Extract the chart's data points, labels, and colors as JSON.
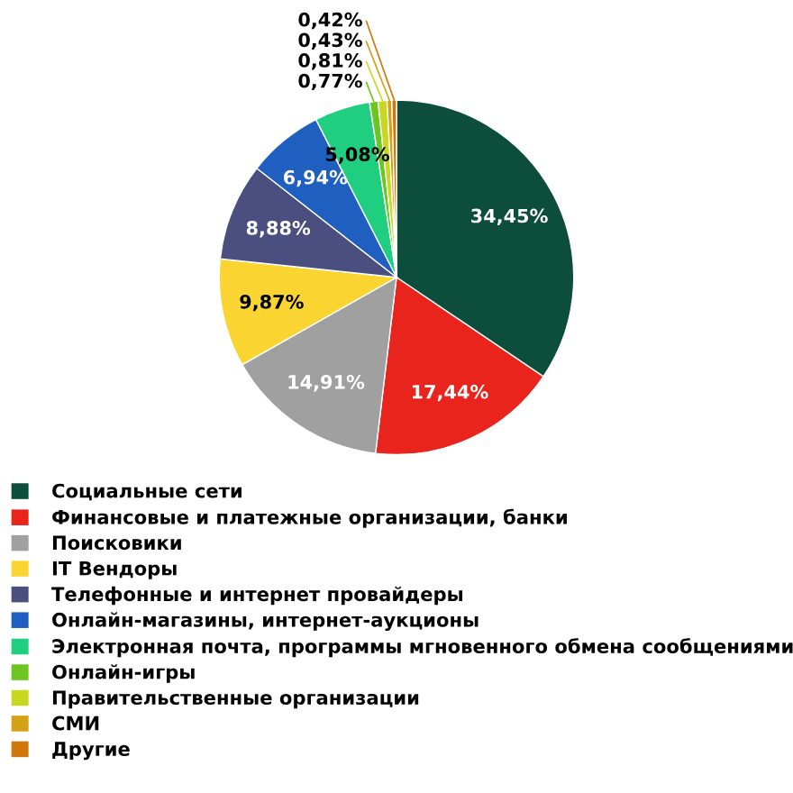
{
  "chart_data": {
    "type": "pie",
    "categories": [
      "Социальные сети",
      "Финансовые и платежные организации, банки",
      "Поисковики",
      "IT Вендоры",
      "Телефонные и интернет провайдеры",
      "Онлайн-магазины, интернет-аукционы",
      "Электронная почта, программы мгновенного обмена сообщениями",
      "Онлайн-игры",
      "Правительственные организации",
      "СМИ",
      "Другие"
    ],
    "values": [
      34.45,
      17.44,
      14.91,
      9.87,
      8.88,
      6.94,
      5.08,
      0.77,
      0.81,
      0.43,
      0.42
    ],
    "value_labels": [
      "34,45%",
      "17,44%",
      "14,91%",
      "9,87%",
      "8,88%",
      "6,94%",
      "5,08%",
      "0,77%",
      "0,81%",
      "0,43%",
      "0,42%"
    ],
    "colors": [
      "#0d4d3c",
      "#e8241c",
      "#a0a0a0",
      "#fad531",
      "#4a4f80",
      "#1f5fbf",
      "#1fcf7f",
      "#6cc520",
      "#c8d820",
      "#d4a014",
      "#d0780c"
    ],
    "legend": "bottom"
  }
}
